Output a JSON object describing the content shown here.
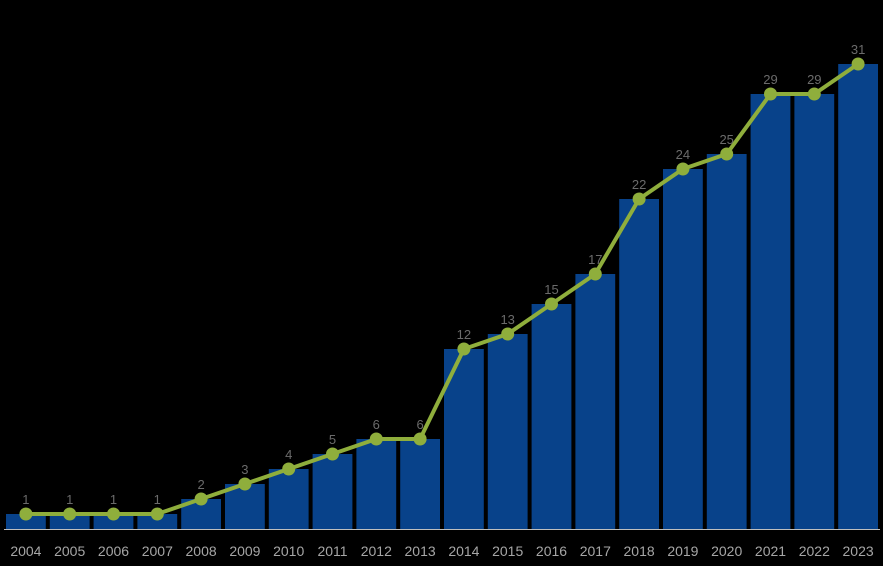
{
  "chart_data": {
    "type": "bar",
    "title": "",
    "xlabel": "",
    "ylabel": "",
    "ylim": [
      0,
      31
    ],
    "grid": false,
    "legend": "none",
    "colors": {
      "bar": "#08428a",
      "line": "#8fae3c",
      "background": "#000000"
    },
    "categories": [
      "2004",
      "2005",
      "2006",
      "2007",
      "2008",
      "2009",
      "2010",
      "2011",
      "2012",
      "2013",
      "2014",
      "2015",
      "2016",
      "2017",
      "2018",
      "2019",
      "2020",
      "2021",
      "2022",
      "2023"
    ],
    "series": [
      {
        "type": "bar",
        "values": [
          1,
          1,
          1,
          1,
          2,
          3,
          4,
          5,
          6,
          6,
          12,
          13,
          15,
          17,
          22,
          24,
          25,
          29,
          29,
          31
        ]
      },
      {
        "type": "line",
        "values": [
          1,
          1,
          1,
          1,
          2,
          3,
          4,
          5,
          6,
          6,
          12,
          13,
          15,
          17,
          22,
          24,
          25,
          29,
          29,
          31
        ]
      }
    ],
    "data_labels": [
      1,
      1,
      1,
      1,
      2,
      3,
      4,
      5,
      6,
      6,
      12,
      13,
      15,
      17,
      22,
      24,
      25,
      29,
      29,
      31
    ]
  }
}
